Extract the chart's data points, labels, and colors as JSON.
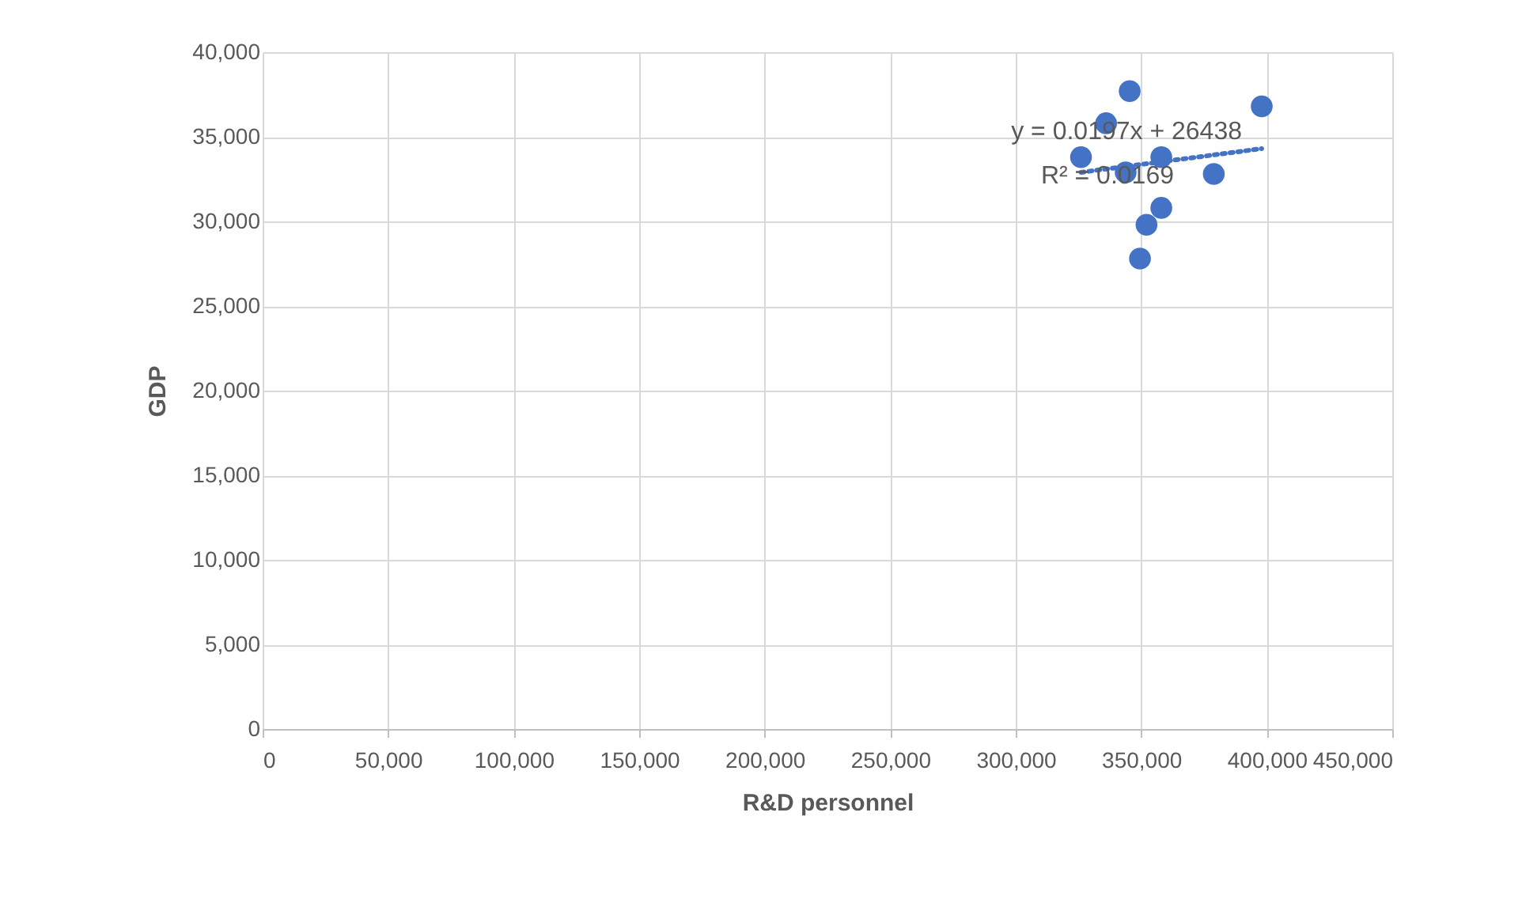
{
  "chart_data": {
    "type": "scatter",
    "xlabel": "R&D personnel",
    "ylabel": "GDP",
    "xlim": [
      0,
      450000
    ],
    "ylim": [
      0,
      40000
    ],
    "xticks": [
      {
        "value": 0,
        "label": "0"
      },
      {
        "value": 50000,
        "label": "50,000"
      },
      {
        "value": 100000,
        "label": "100,000"
      },
      {
        "value": 150000,
        "label": "150,000"
      },
      {
        "value": 200000,
        "label": "200,000"
      },
      {
        "value": 250000,
        "label": "250,000"
      },
      {
        "value": 300000,
        "label": "300,000"
      },
      {
        "value": 350000,
        "label": "350,000"
      },
      {
        "value": 400000,
        "label": "400,000"
      },
      {
        "value": 450000,
        "label": "450,000"
      }
    ],
    "yticks": [
      {
        "value": 0,
        "label": "0"
      },
      {
        "value": 5000,
        "label": "5,000"
      },
      {
        "value": 10000,
        "label": "10,000"
      },
      {
        "value": 15000,
        "label": "15,000"
      },
      {
        "value": 20000,
        "label": "20,000"
      },
      {
        "value": 25000,
        "label": "25,000"
      },
      {
        "value": 30000,
        "label": "30,000"
      },
      {
        "value": 35000,
        "label": "35,000"
      },
      {
        "value": 40000,
        "label": "40,000"
      }
    ],
    "grid": true,
    "series": [
      {
        "type": "scatter",
        "marker": "circle",
        "color": "#4472c4",
        "x": [
          345400,
          398000,
          336000,
          326000,
          358000,
          343800,
          378900,
          358000,
          352100,
          349500
        ],
        "values": [
          37700,
          36800,
          35800,
          33800,
          33800,
          32900,
          32800,
          30800,
          29800,
          27800
        ]
      },
      {
        "type": "line",
        "marker": "none",
        "line_style": "dotted",
        "color": "#4472c4",
        "x": [
          326000,
          398000
        ],
        "values": [
          32900,
          34300
        ]
      }
    ],
    "annotations": [
      "y = 0.0197x + 26438",
      "R² = 0.0169"
    ]
  }
}
